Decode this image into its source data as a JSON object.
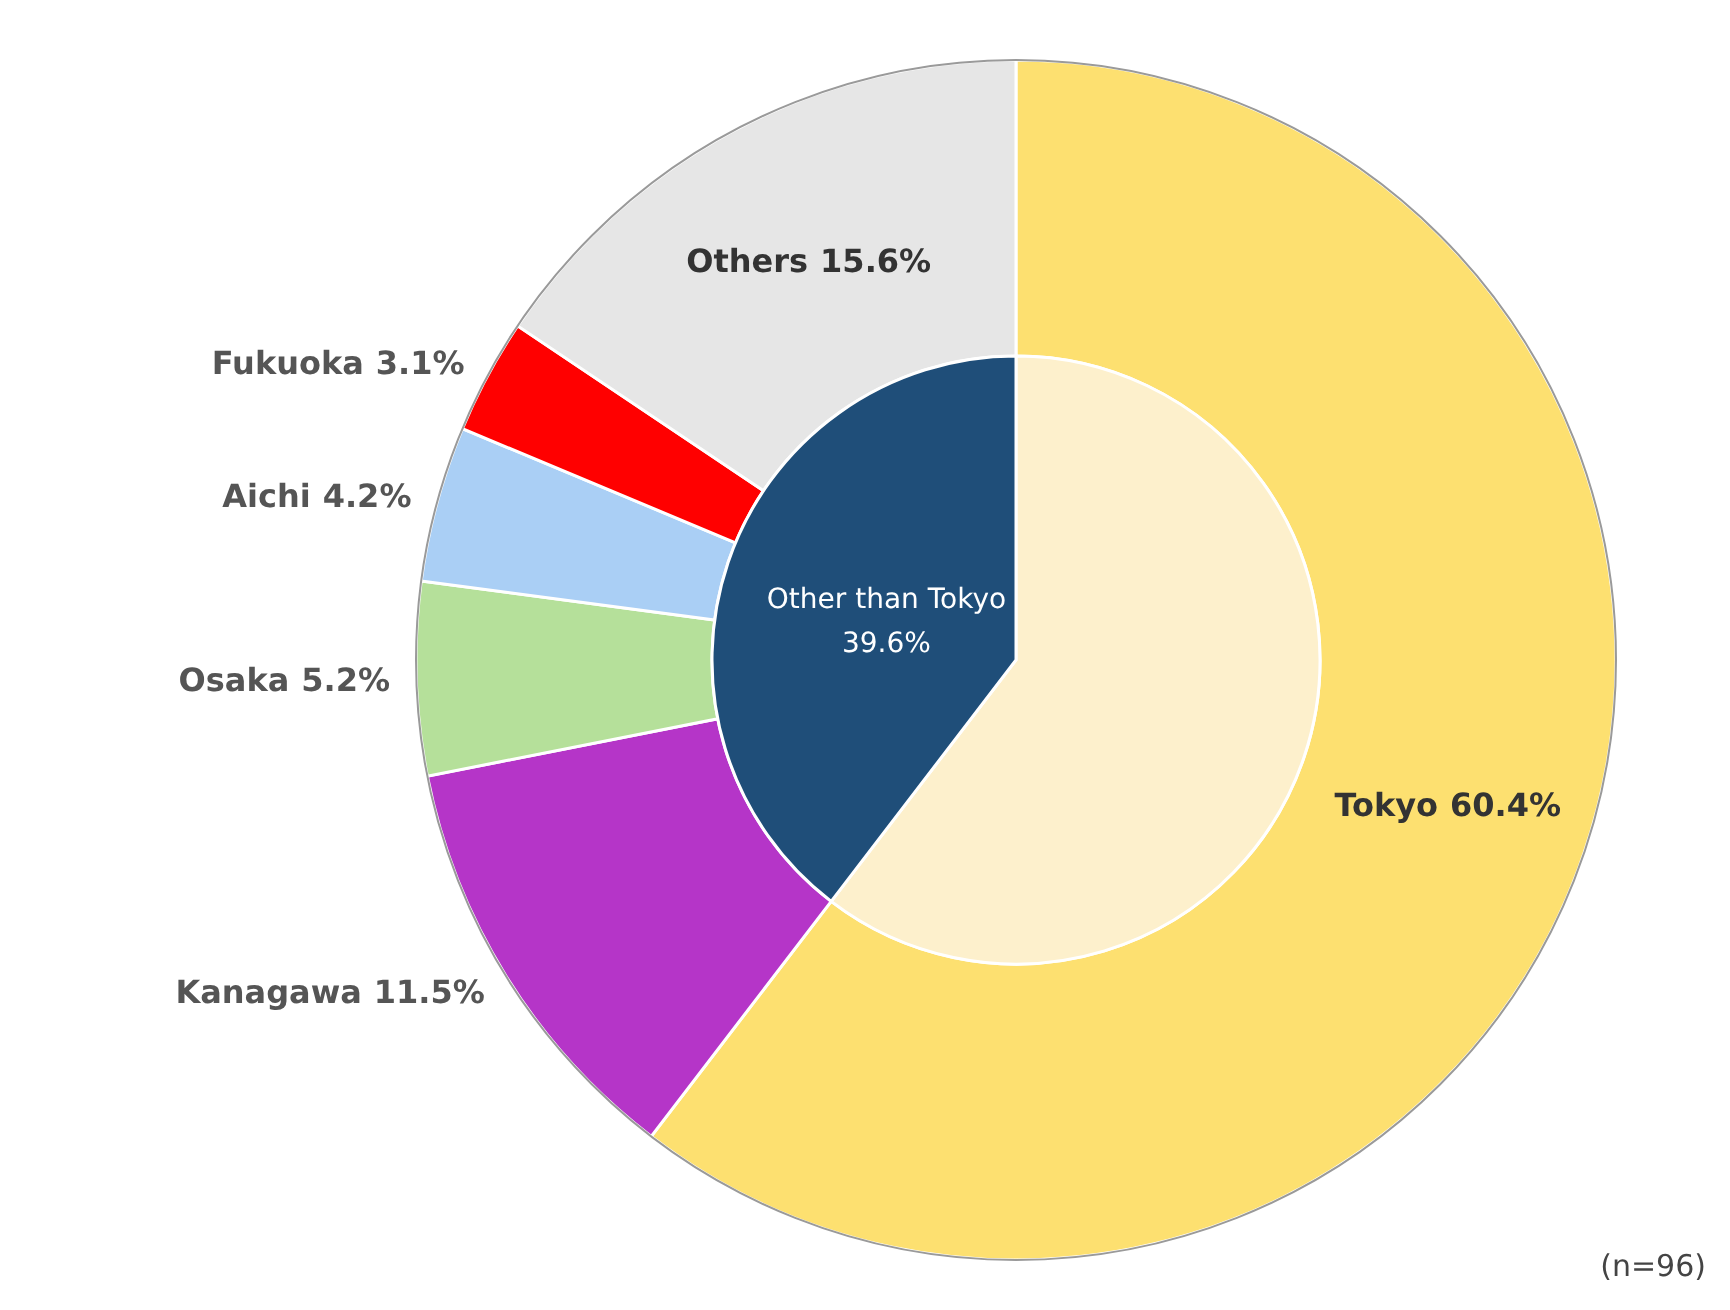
{
  "chart_data": [
    {
      "type": "donut",
      "categories": [
        "Tokyo",
        "Kanagawa",
        "Osaka",
        "Aichi",
        "Fukuoka",
        "Others"
      ],
      "values": [
        60.4,
        11.5,
        5.2,
        4.2,
        3.1,
        15.6
      ],
      "colors": [
        "#fde070",
        "#b535c8",
        "#b5e09a",
        "#aacff5",
        "#ff0000",
        "#e6e6e6"
      ],
      "value_labels": [
        "60.4%",
        "11.5%",
        "5.2%",
        "4.2%",
        "3.1%",
        "15.6%"
      ],
      "annotations": [
        "(n=96)"
      ]
    },
    {
      "type": "pie",
      "categories": [
        null,
        "Other than Tokyo"
      ],
      "values": [
        60.4,
        39.6
      ],
      "colors": [
        "#fdf0cc",
        "#1f4e79"
      ],
      "value_labels": [
        null,
        "39.6%"
      ]
    }
  ]
}
